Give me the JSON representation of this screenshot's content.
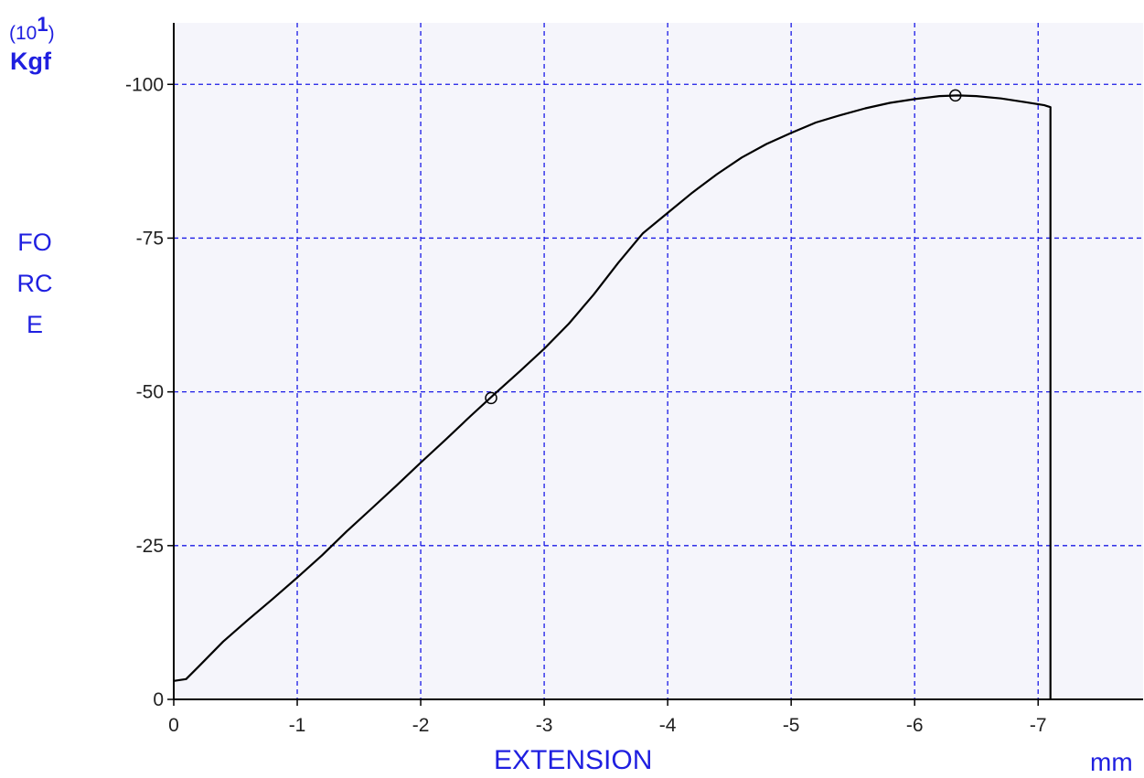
{
  "chart_data": {
    "type": "line",
    "y_unit_exponent": "(10",
    "y_unit_exponent_power": "1",
    "y_unit_exponent_close": ")",
    "y_unit": "Kgf",
    "ylabel": "FORCE",
    "xlabel": "EXTENSION",
    "x_unit": "mm",
    "xlim": [
      0,
      -7.85
    ],
    "ylim": [
      0,
      -110
    ],
    "x_ticks": [
      0,
      -1,
      -2,
      -3,
      -4,
      -5,
      -6,
      -7
    ],
    "x_tick_labels": [
      "0",
      "-1",
      "-2",
      "-3",
      "-4",
      "-5",
      "-6",
      "-7"
    ],
    "y_ticks": [
      0,
      -25,
      -50,
      -75,
      -100
    ],
    "y_tick_labels": [
      "0",
      "-25",
      "-50",
      "-75",
      "-100"
    ],
    "grid": true,
    "legend": "none",
    "colors": {
      "plot_background": "#f5f5fb",
      "grid": "#1a1ae6",
      "curve": "#000000",
      "axis": "#000000",
      "labels": "#1f1fe0"
    },
    "series": [
      {
        "values": [
          [
            0.0,
            -3.0
          ],
          [
            -0.1,
            -3.3
          ],
          [
            -0.2,
            -5.3
          ],
          [
            -0.4,
            -9.4
          ],
          [
            -0.6,
            -12.9
          ],
          [
            -0.8,
            -16.3
          ],
          [
            -1.0,
            -19.8
          ],
          [
            -1.2,
            -23.4
          ],
          [
            -1.4,
            -27.3
          ],
          [
            -1.6,
            -31.0
          ],
          [
            -1.8,
            -34.7
          ],
          [
            -2.0,
            -38.5
          ],
          [
            -2.2,
            -42.2
          ],
          [
            -2.4,
            -46.0
          ],
          [
            -2.6,
            -49.7
          ],
          [
            -2.8,
            -53.3
          ],
          [
            -3.0,
            -57.0
          ],
          [
            -3.2,
            -61.1
          ],
          [
            -3.4,
            -65.8
          ],
          [
            -3.6,
            -71.0
          ],
          [
            -3.8,
            -75.8
          ],
          [
            -4.0,
            -79.1
          ],
          [
            -4.2,
            -82.4
          ],
          [
            -4.4,
            -85.4
          ],
          [
            -4.6,
            -88.1
          ],
          [
            -4.8,
            -90.3
          ],
          [
            -5.0,
            -92.1
          ],
          [
            -5.2,
            -93.8
          ],
          [
            -5.4,
            -95.0
          ],
          [
            -5.6,
            -96.1
          ],
          [
            -5.8,
            -97.0
          ],
          [
            -6.0,
            -97.6
          ],
          [
            -6.2,
            -98.1
          ],
          [
            -6.35,
            -98.2
          ],
          [
            -6.5,
            -98.1
          ],
          [
            -6.7,
            -97.7
          ],
          [
            -6.9,
            -97.1
          ],
          [
            -7.05,
            -96.6
          ],
          [
            -7.1,
            -96.3
          ],
          [
            -7.1,
            0.0
          ]
        ]
      }
    ],
    "markers": [
      [
        -2.57,
        -49.0
      ],
      [
        -6.33,
        -98.2
      ]
    ]
  }
}
